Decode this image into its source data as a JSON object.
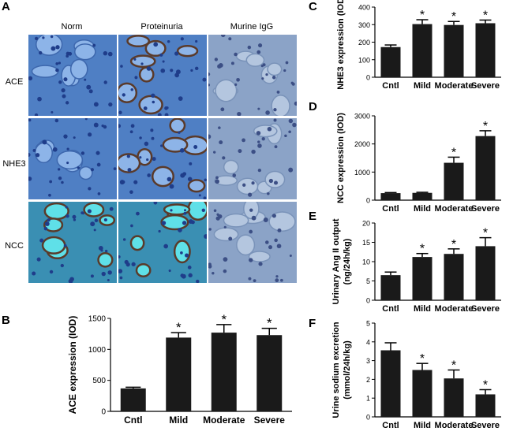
{
  "panel_a": {
    "letter": "A",
    "columns": [
      "Norm",
      "Proteinuria",
      "Murine IgG"
    ],
    "rows": [
      "ACE",
      "NHE3",
      "NCC"
    ]
  },
  "chart_data": [
    {
      "id": "B",
      "type": "bar",
      "categories": [
        "Cntl",
        "Mild",
        "Moderate",
        "Severe"
      ],
      "values": [
        370,
        1190,
        1270,
        1230
      ],
      "errors": [
        20,
        80,
        130,
        110
      ],
      "significant": [
        false,
        true,
        true,
        true
      ],
      "ylabel": "ACE expression (IOD)",
      "ylim": [
        0,
        1500
      ],
      "yticks": [
        0,
        500,
        1000,
        1500
      ],
      "bar_color": "#1a1a1a"
    },
    {
      "id": "C",
      "type": "bar",
      "categories": [
        "Cntl",
        "Mild",
        "Moderate",
        "Severe"
      ],
      "values": [
        172,
        303,
        298,
        308
      ],
      "errors": [
        12,
        25,
        20,
        18
      ],
      "significant": [
        false,
        true,
        true,
        true
      ],
      "ylabel": "NHE3 expression (IOD)",
      "ylim": [
        0,
        400
      ],
      "yticks": [
        0,
        100,
        200,
        300,
        400
      ],
      "bar_color": "#1a1a1a"
    },
    {
      "id": "D",
      "type": "bar",
      "categories": [
        "Cntl",
        "Mild",
        "Moderate",
        "Severe"
      ],
      "values": [
        250,
        260,
        1330,
        2280
      ],
      "errors": [
        20,
        20,
        200,
        190
      ],
      "significant": [
        false,
        false,
        true,
        true
      ],
      "ylabel": "NCC expression (IOD)",
      "ylim": [
        0,
        3000
      ],
      "yticks": [
        0,
        1000,
        2000,
        3000
      ],
      "bar_color": "#1a1a1a"
    },
    {
      "id": "E",
      "type": "bar",
      "categories": [
        "Cntl",
        "Mild",
        "Moderate",
        "Severe"
      ],
      "values": [
        6.5,
        11.2,
        12.0,
        14.0
      ],
      "errors": [
        0.8,
        0.9,
        1.3,
        2.2
      ],
      "significant": [
        false,
        true,
        true,
        true
      ],
      "ylabel": "Urinary Ang II output",
      "ylabel2": "(ng/24h/kg)",
      "ylim": [
        0,
        20
      ],
      "yticks": [
        0,
        5,
        10,
        15,
        20
      ],
      "bar_color": "#1a1a1a"
    },
    {
      "id": "F",
      "type": "bar",
      "categories": [
        "Cntl",
        "Mild",
        "Moderate",
        "Severe"
      ],
      "values": [
        3.55,
        2.5,
        2.05,
        1.2
      ],
      "errors": [
        0.4,
        0.35,
        0.45,
        0.25
      ],
      "significant": [
        false,
        true,
        true,
        true
      ],
      "ylabel": "Urine sodium excretion",
      "ylabel2": "(mmol/24h/kg)",
      "ylim": [
        0,
        5
      ],
      "yticks": [
        0,
        1,
        2,
        3,
        4,
        5
      ],
      "bar_color": "#1a1a1a"
    }
  ]
}
